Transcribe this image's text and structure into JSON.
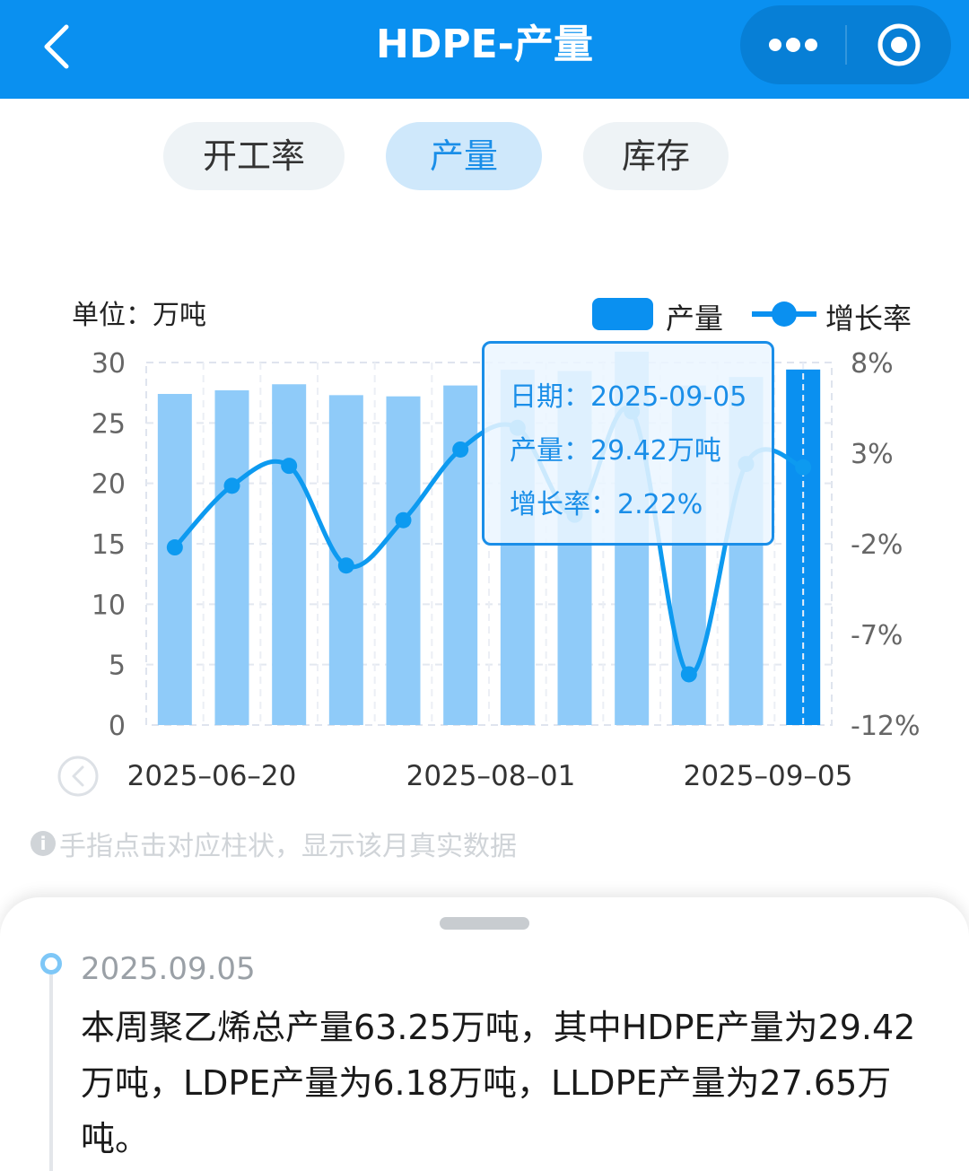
{
  "header": {
    "title": "HDPE-产量",
    "back_icon": "chevron-left-icon",
    "more_icon": "more-dots-icon",
    "close_icon": "target-circle-icon"
  },
  "tabs": [
    {
      "label": "开工率",
      "active": false
    },
    {
      "label": "产量",
      "active": true
    },
    {
      "label": "库存",
      "active": false
    }
  ],
  "unit_label": "单位：万吨",
  "legend": {
    "bar": "产量",
    "line": "增长率"
  },
  "colors": {
    "primary": "#0a90f0",
    "bar_light": "#8fcbf9",
    "bar_selected": "#0a90f0",
    "line": "#0d9af0",
    "tab_active_bg": "#cfe8fb",
    "tab_active_text": "#1a8ee8"
  },
  "chart_data": {
    "type": "bar",
    "categories": [
      "",
      "",
      "",
      "",
      "",
      "",
      "",
      "",
      "",
      "",
      "",
      "2025-09-05"
    ],
    "x_tick_labels": [
      "2025–06–20",
      "2025–08–01",
      "2025–09–05"
    ],
    "series": [
      {
        "name": "产量",
        "type": "bar",
        "axis": "left",
        "values": [
          27.4,
          27.7,
          28.2,
          27.3,
          27.2,
          28.1,
          29.4,
          29.3,
          30.9,
          28.1,
          28.8,
          29.42
        ]
      },
      {
        "name": "增长率",
        "type": "line",
        "axis": "right",
        "unit": "%",
        "values": [
          -2.2,
          1.2,
          2.3,
          -3.2,
          -0.7,
          3.2,
          4.4,
          -0.4,
          5.3,
          -9.2,
          2.4,
          2.22
        ]
      }
    ],
    "y_left": {
      "min": 0,
      "max": 30,
      "ticks": [
        0,
        5,
        10,
        15,
        20,
        25,
        30
      ]
    },
    "y_right": {
      "min": -12,
      "max": 8,
      "ticks": [
        "-12%",
        "-7%",
        "-2%",
        "3%",
        "8%"
      ]
    },
    "selected_index": 11,
    "grid": true,
    "legend_position": "top-right"
  },
  "tooltip": {
    "date": "日期：2025-09-05",
    "output": "产量：29.42万吨",
    "growth": "增长率：2.22%"
  },
  "scroll_left_icon": "chevron-left-circle-icon",
  "hint": {
    "icon": "info-icon",
    "icon_glyph": "i",
    "text": "手指点击对应柱状，显示该月真实数据"
  },
  "entry": {
    "date": "2025.09.05",
    "text": "本周聚乙烯总产量63.25万吨，其中HDPE产量为29.42万吨，LDPE产量为6.18万吨，LLDPE产量为27.65万吨。"
  }
}
